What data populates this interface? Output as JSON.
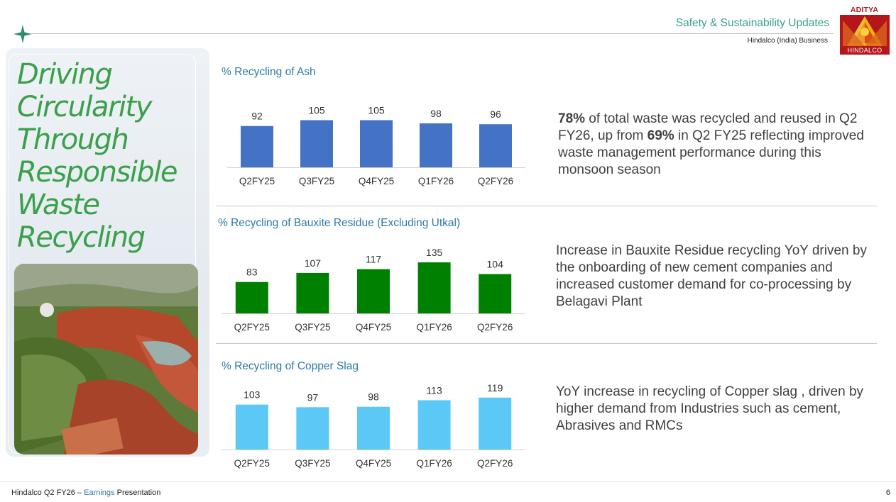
{
  "header": {
    "section_title": "Safety & Sustainability Updates",
    "section_subtitle": "Hindalco (India) Business",
    "logo_top": "ADITYA BIRLA",
    "logo_bottom": "HINDALCO"
  },
  "left": {
    "title_lines": [
      "Driving",
      "Circularity",
      "Through",
      "Responsible",
      "Waste",
      "Recycling"
    ],
    "photo_icon": "aerial-landscape-photo"
  },
  "colors": {
    "ash": "#4472c4",
    "bauxite": "#008000",
    "copper": "#5bc8f5",
    "accent": "#3aa08a",
    "title_green": "#3aa04a",
    "logo_red": "#b4161b"
  },
  "descriptions": {
    "ash": {
      "bold1": "78%",
      "text1": " of total waste was recycled and reused in Q2 FY26, up from ",
      "bold2": "69%",
      "text2": " in Q2 FY25  reflecting improved waste management performance during this monsoon season"
    },
    "bauxite": "Increase in Bauxite Residue recycling YoY driven by the onboarding of new cement companies and increased customer demand for co-processing by Belagavi Plant",
    "copper": "YoY increase in recycling of Copper slag , driven by higher demand from Industries such as cement, Abrasives and RMCs"
  },
  "footer": {
    "company": "Hindalco Q2 FY26 – ",
    "accent": "Earnings",
    "rest": " Presentation",
    "page": "6"
  },
  "chart_data": [
    {
      "type": "bar",
      "title": "% Recycling of Ash",
      "categories": [
        "Q2FY25",
        "Q3FY25",
        "Q4FY25",
        "Q1FY26",
        "Q2FY26"
      ],
      "values": [
        92,
        105,
        105,
        98,
        96
      ],
      "xlabel": "",
      "ylabel": "",
      "ylim": [
        0,
        120
      ]
    },
    {
      "type": "bar",
      "title": "% Recycling of Bauxite Residue (Excluding Utkal)",
      "categories": [
        "Q2FY25",
        "Q3FY25",
        "Q4FY25",
        "Q1FY26",
        "Q2FY26"
      ],
      "values": [
        83,
        107,
        117,
        135,
        104
      ],
      "xlabel": "",
      "ylabel": "",
      "ylim": [
        0,
        150
      ]
    },
    {
      "type": "bar",
      "title": "% Recycling of Copper Slag",
      "categories": [
        "Q2FY25",
        "Q3FY25",
        "Q4FY25",
        "Q1FY26",
        "Q2FY26"
      ],
      "values": [
        103,
        97,
        98,
        113,
        119
      ],
      "xlabel": "",
      "ylabel": "",
      "ylim": [
        0,
        130
      ]
    }
  ]
}
